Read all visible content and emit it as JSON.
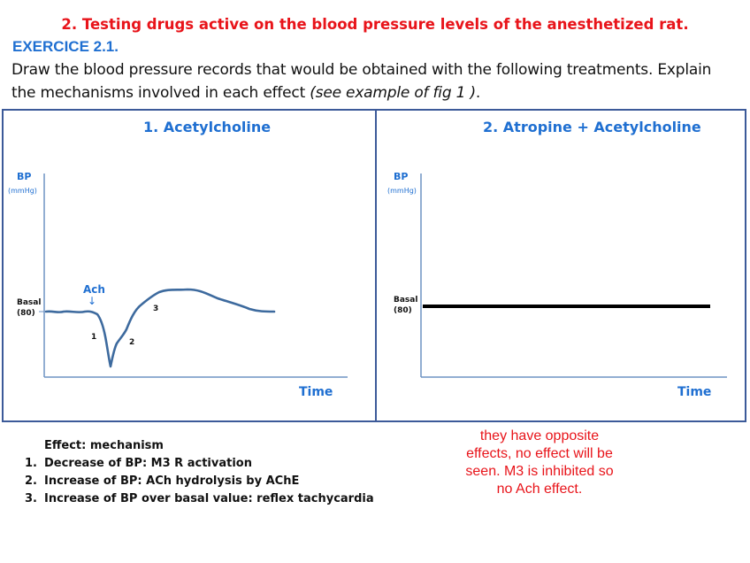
{
  "heading": "2. Testing drugs active on the blood pressure levels of the anesthetized rat.",
  "exercise": "EXERCICE 2.1.",
  "instructions": {
    "line1": "Draw the blood pressure records that would be obtained with the following treatments. Explain",
    "line2": "the mechanisms involved in each effect ",
    "line2_italic": "(see example of fig 1 )",
    "line2_end": "."
  },
  "panel1": {
    "title": "1. Acetylcholine",
    "y_label": "BP",
    "y_unit": "(mmHg)",
    "x_label": "Time",
    "basal_label": "Basal",
    "basal_value": "(80)",
    "drug_marker": "Ach",
    "arrow": "↓",
    "phase1": "1",
    "phase2": "2",
    "phase3": "3"
  },
  "panel2": {
    "title": "2. Atropine + Acetylcholine",
    "y_label": "BP",
    "y_unit": "(mmHg)",
    "x_label": "Time",
    "basal_label": "Basal",
    "basal_value": "(80)"
  },
  "legend": {
    "header": "Effect: mechanism",
    "items": [
      {
        "n": "1.",
        "text": "Decrease of BP: M3 R activation"
      },
      {
        "n": "2.",
        "text": "Increase of BP: ACh hydrolysis by AChE"
      },
      {
        "n": "3.",
        "text": "Increase of BP over basal value: reflex tachycardia"
      }
    ]
  },
  "annotation": "they have opposite effects, no effect will be seen. M3 is inhibited so no Ach effect.",
  "colors": {
    "heading": "#e8141a",
    "accent_blue": "#1f6fd1",
    "frame": "#3c5a99",
    "trace": "#3d6a9e",
    "annotation": "#e8141a"
  }
}
